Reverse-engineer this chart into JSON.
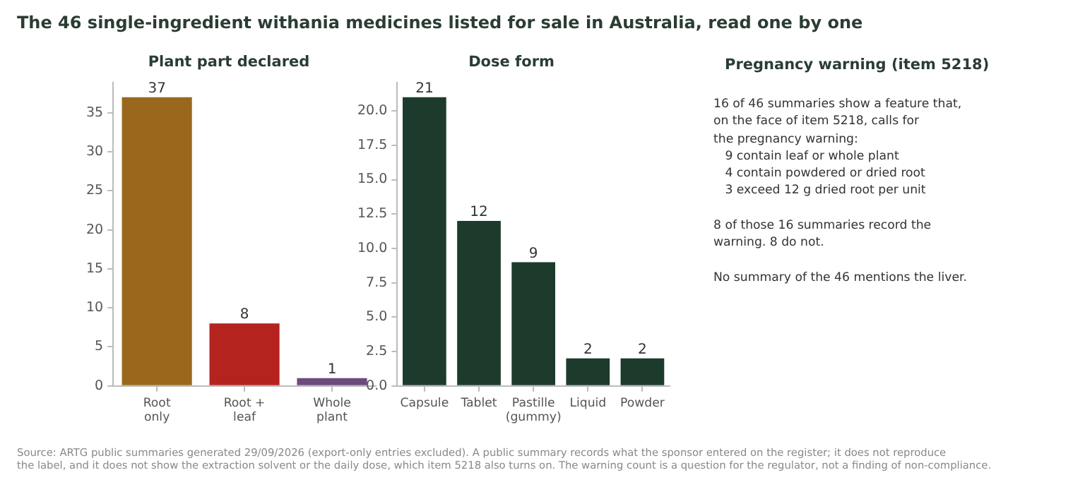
{
  "chart_data": [
    {
      "type": "other",
      "title": "The 46 single-ingredient withania medicines listed for sale in Australia, read one by one",
      "annotations": [
        "Source: ARTG public summaries generated 29/09/2026 (export-only entries excluded). A public summary records what the sponsor entered on the register; it does not reproduce\nthe label, and it does not show the extraction solvent or the daily dose, which item 5218 also turns on. The warning count is a question for the regulator, not a finding of non-compliance."
      ]
    },
    {
      "type": "bar",
      "title": "Plant part declared",
      "categories": [
        "Root\nonly",
        "Root +\nleaf",
        "Whole\nplant"
      ],
      "values": [
        37,
        8,
        1
      ],
      "colors": [
        "#9a681d",
        "#b5231e",
        "#6b4a7d"
      ],
      "ylim": [
        0,
        38.85
      ],
      "yticks": [
        0,
        5,
        10,
        15,
        20,
        25,
        30,
        35
      ],
      "data_labels": true,
      "legend": false
    },
    {
      "type": "bar",
      "title": "Dose form",
      "categories": [
        "Capsule",
        "Tablet",
        "Pastille\n(gummy)",
        "Liquid",
        "Powder"
      ],
      "values": [
        21,
        12,
        9,
        2,
        2
      ],
      "color": "#1d3b2c",
      "ylim": [
        0,
        22.05
      ],
      "yticks": [
        {
          "value": 0,
          "label": "0.0"
        },
        {
          "value": 2.5,
          "label": "2.5"
        },
        {
          "value": 5,
          "label": "5.0"
        },
        {
          "value": 7.5,
          "label": "7.5"
        },
        {
          "value": 10,
          "label": "10.0"
        },
        {
          "value": 12.5,
          "label": "12.5"
        },
        {
          "value": 15,
          "label": "15.0"
        },
        {
          "value": 17.5,
          "label": "17.5"
        },
        {
          "value": 20,
          "label": "20.0"
        }
      ],
      "data_labels": true,
      "legend": false
    },
    {
      "type": "other",
      "title": "Pregnancy warning (item 5218)",
      "annotations": [
        "16 of 46 summaries show a feature that,\non the face of item 5218, calls for\nthe pregnancy warning:\n   9 contain leaf or whole plant\n   4 contain powdered or dried root\n   3 exceed 12 g dried root per unit",
        "8 of those 16 summaries record the\nwarning. 8 do not.",
        "No summary of the 46 mentions the liver."
      ]
    }
  ]
}
